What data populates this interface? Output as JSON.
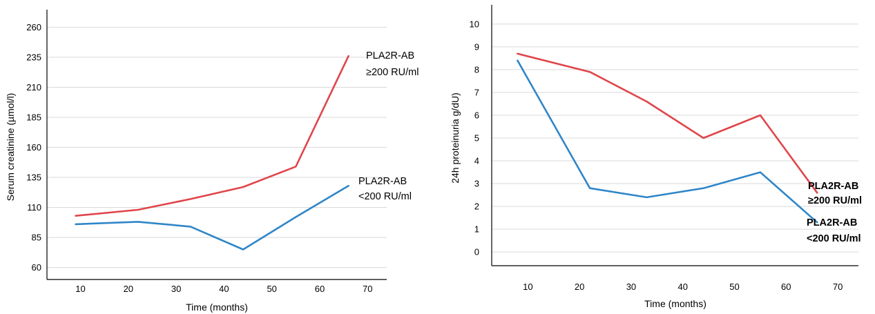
{
  "chart_data": [
    {
      "type": "line",
      "xlabel": "Time (months)",
      "ylabel": "Serum creatinine (µmol/l)",
      "x_ticks": [
        "10",
        "20",
        "30",
        "40",
        "50",
        "60",
        "70"
      ],
      "y_ticks": [
        "60",
        "85",
        "110",
        "135",
        "160",
        "185",
        "210",
        "235",
        "260"
      ],
      "ylim": [
        50,
        270
      ],
      "xlim": [
        3,
        74
      ],
      "grid": true,
      "series": [
        {
          "name_lines": [
            "PLA2R-AB",
            "≥200 RU/ml"
          ],
          "color": "#e0454a",
          "x": [
            9,
            22,
            33,
            44,
            55,
            66
          ],
          "y": [
            103,
            108,
            117,
            127,
            144,
            236
          ]
        },
        {
          "name_lines": [
            "PLA2R-AB",
            "<200 RU/ml"
          ],
          "color": "#2f86c8",
          "x": [
            9,
            22,
            33,
            44,
            55,
            66
          ],
          "y": [
            96,
            98,
            94,
            75,
            102,
            128
          ]
        }
      ]
    },
    {
      "type": "line",
      "xlabel": "Time (months)",
      "ylabel": "24h proteinuria g/dU)",
      "x_ticks": [
        "10",
        "20",
        "30",
        "40",
        "50",
        "60",
        "70"
      ],
      "y_ticks": [
        "0",
        "1",
        "2",
        "3",
        "4",
        "5",
        "6",
        "7",
        "8",
        "9",
        "10"
      ],
      "ylim": [
        -0.6,
        10.6
      ],
      "xlim": [
        3,
        74
      ],
      "grid": true,
      "series": [
        {
          "name_lines": [
            "PLA2R-AB",
            "≥200 RU/ml"
          ],
          "color": "#e0454a",
          "x": [
            8,
            22,
            33,
            44,
            55,
            66
          ],
          "y": [
            8.7,
            7.9,
            6.6,
            5.0,
            6.0,
            2.6
          ]
        },
        {
          "name_lines": [
            "PLA2R-AB",
            "<200 RU/ml"
          ],
          "color": "#2f86c8",
          "x": [
            8,
            22,
            33,
            44,
            55,
            66
          ],
          "y": [
            8.4,
            2.8,
            2.4,
            2.8,
            3.5,
            1.3
          ]
        }
      ]
    }
  ]
}
